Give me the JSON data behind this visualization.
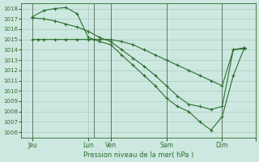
{
  "background_color": "#cce8e0",
  "grid_color": "#aaccc4",
  "line_color": "#2d6e2d",
  "vline_color": "#667766",
  "xlabel": "Pression niveau de la mer( hPa )",
  "ylim": [
    1005.5,
    1018.5
  ],
  "yticks": [
    1006,
    1007,
    1008,
    1009,
    1010,
    1011,
    1012,
    1013,
    1014,
    1015,
    1016,
    1017,
    1018
  ],
  "xlim": [
    0,
    21
  ],
  "xtick_positions": [
    1,
    6,
    8,
    13,
    18,
    21
  ],
  "xtick_labels": [
    "Jeu",
    "Lun",
    "Ven",
    "Sam",
    "Dim",
    ""
  ],
  "vline_positions": [
    1,
    6.5,
    8,
    13,
    18
  ],
  "line1_x": [
    1,
    1.5,
    2,
    3,
    4,
    5,
    6,
    6.5,
    7,
    8,
    9,
    10,
    11,
    12,
    13,
    14,
    15,
    16,
    17,
    18,
    19,
    20
  ],
  "line1_y": [
    1015.0,
    1015.0,
    1015.0,
    1015.0,
    1015.0,
    1015.0,
    1015.0,
    1015.0,
    1015.0,
    1015.0,
    1014.8,
    1014.5,
    1014.0,
    1013.5,
    1013.0,
    1012.5,
    1012.0,
    1011.5,
    1011.0,
    1010.5,
    1014.0,
    1014.1
  ],
  "line2_x": [
    1,
    2,
    3,
    4,
    5,
    6,
    7,
    8,
    9,
    10,
    11,
    12,
    13,
    14,
    15,
    16,
    17,
    18,
    19,
    20
  ],
  "line2_y": [
    1017.1,
    1017.0,
    1016.8,
    1016.5,
    1016.2,
    1015.8,
    1015.2,
    1014.8,
    1014.0,
    1013.2,
    1012.4,
    1011.5,
    1010.5,
    1009.5,
    1008.7,
    1008.5,
    1008.2,
    1008.5,
    1014.0,
    1014.2
  ],
  "line3_x": [
    1,
    2,
    3,
    4,
    5,
    6,
    7,
    8,
    9,
    10,
    11,
    12,
    13,
    14,
    15,
    16,
    17,
    18,
    19,
    20
  ],
  "line3_y": [
    1017.2,
    1017.8,
    1018.0,
    1018.1,
    1017.5,
    1015.2,
    1014.8,
    1014.5,
    1013.5,
    1012.5,
    1011.5,
    1010.5,
    1009.3,
    1008.5,
    1008.0,
    1007.0,
    1006.2,
    1007.5,
    1011.5,
    1014.2
  ]
}
